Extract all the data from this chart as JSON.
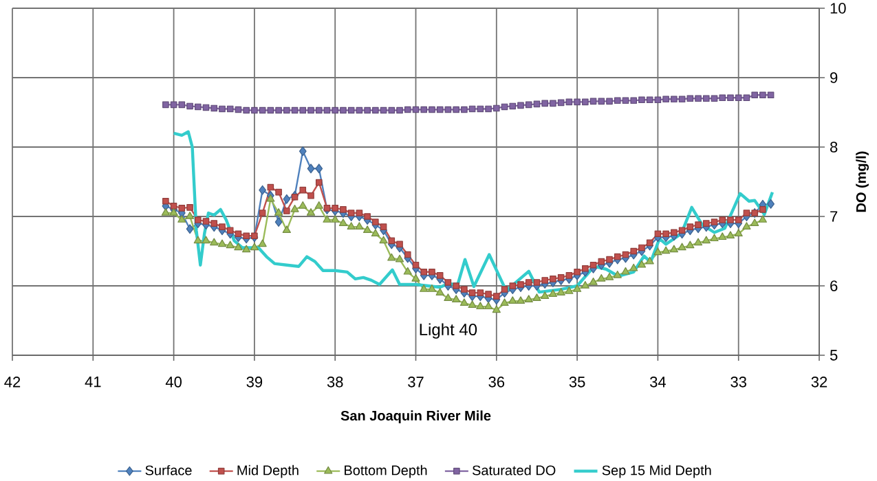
{
  "chart_data": {
    "type": "line",
    "xlabel": "San Joaquin River Mile",
    "ylabel": "DO (mg/l)",
    "xlim": [
      42,
      32
    ],
    "xticks": [
      42,
      41,
      40,
      39,
      38,
      37,
      36,
      35,
      34,
      33,
      32
    ],
    "ylim": [
      5,
      10
    ],
    "yticks": [
      5,
      6,
      7,
      8,
      9,
      10
    ],
    "grid": true,
    "legend": "bottom",
    "annotations": [
      "Light 40"
    ],
    "series": [
      {
        "name": "Surface",
        "color": "#4f81bd",
        "marker": "diamond",
        "line_style": "solid",
        "x": [
          40.1,
          40.0,
          39.9,
          39.8,
          39.7,
          39.6,
          39.5,
          39.4,
          39.3,
          39.2,
          39.1,
          39.0,
          38.9,
          38.8,
          38.7,
          38.6,
          38.5,
          38.4,
          38.3,
          38.2,
          38.1,
          38.0,
          37.9,
          37.8,
          37.7,
          37.6,
          37.5,
          37.4,
          37.3,
          37.2,
          37.1,
          37.0,
          36.9,
          36.8,
          36.7,
          36.6,
          36.5,
          36.4,
          36.3,
          36.2,
          36.1,
          36.0,
          35.9,
          35.8,
          35.7,
          35.6,
          35.5,
          35.4,
          35.3,
          35.2,
          35.1,
          35.0,
          34.9,
          34.8,
          34.7,
          34.6,
          34.5,
          34.4,
          34.3,
          34.2,
          34.1,
          34.0,
          33.9,
          33.8,
          33.7,
          33.6,
          33.5,
          33.4,
          33.3,
          33.2,
          33.1,
          33.0,
          32.9,
          32.8,
          32.7,
          32.6
        ],
        "values": [
          7.15,
          7.1,
          7.05,
          6.82,
          6.9,
          6.88,
          6.85,
          6.8,
          6.75,
          6.7,
          6.68,
          6.7,
          7.38,
          7.3,
          6.92,
          7.25,
          7.3,
          7.94,
          7.69,
          7.69,
          7.1,
          7.08,
          7.05,
          7.0,
          7.0,
          6.95,
          6.88,
          6.8,
          6.6,
          6.55,
          6.4,
          6.25,
          6.15,
          6.15,
          6.1,
          6.0,
          5.95,
          5.9,
          5.85,
          5.85,
          5.82,
          5.8,
          5.9,
          5.95,
          5.98,
          6.0,
          6.0,
          6.03,
          6.05,
          6.08,
          6.1,
          6.15,
          6.2,
          6.25,
          6.3,
          6.33,
          6.38,
          6.4,
          6.45,
          6.5,
          6.58,
          6.7,
          6.7,
          6.72,
          6.75,
          6.8,
          6.83,
          6.85,
          6.88,
          6.9,
          6.9,
          6.9,
          7.0,
          7.05,
          7.17,
          7.18
        ]
      },
      {
        "name": "Mid Depth",
        "color": "#c0504d",
        "marker": "square",
        "line_style": "solid",
        "x": [
          40.1,
          40.0,
          39.9,
          39.8,
          39.7,
          39.6,
          39.5,
          39.4,
          39.3,
          39.2,
          39.1,
          39.0,
          38.9,
          38.8,
          38.7,
          38.6,
          38.5,
          38.4,
          38.3,
          38.2,
          38.1,
          38.0,
          37.9,
          37.8,
          37.7,
          37.6,
          37.5,
          37.4,
          37.3,
          37.2,
          37.1,
          37.0,
          36.9,
          36.8,
          36.7,
          36.6,
          36.5,
          36.4,
          36.3,
          36.2,
          36.1,
          36.0,
          35.9,
          35.8,
          35.7,
          35.6,
          35.5,
          35.4,
          35.3,
          35.2,
          35.1,
          35.0,
          34.9,
          34.8,
          34.7,
          34.6,
          34.5,
          34.4,
          34.3,
          34.2,
          34.1,
          34.0,
          33.9,
          33.8,
          33.7,
          33.6,
          33.5,
          33.4,
          33.3,
          33.2,
          33.1,
          33.0,
          32.9,
          32.8,
          32.7
        ],
        "values": [
          7.22,
          7.15,
          7.12,
          7.13,
          6.95,
          6.93,
          6.9,
          6.85,
          6.8,
          6.75,
          6.72,
          6.72,
          7.05,
          7.42,
          7.35,
          7.08,
          7.28,
          7.38,
          7.3,
          7.49,
          7.12,
          7.12,
          7.1,
          7.05,
          7.05,
          7.0,
          6.92,
          6.85,
          6.65,
          6.6,
          6.45,
          6.3,
          6.2,
          6.2,
          6.15,
          6.05,
          6.0,
          5.95,
          5.9,
          5.9,
          5.88,
          5.85,
          5.95,
          6.0,
          6.02,
          6.05,
          6.05,
          6.08,
          6.1,
          6.12,
          6.15,
          6.2,
          6.25,
          6.3,
          6.35,
          6.38,
          6.42,
          6.45,
          6.5,
          6.55,
          6.62,
          6.75,
          6.75,
          6.77,
          6.8,
          6.85,
          6.88,
          6.9,
          6.92,
          6.95,
          6.95,
          6.95,
          7.05,
          7.05,
          7.1
        ]
      },
      {
        "name": "Bottom Depth",
        "color": "#9bbb59",
        "marker": "triangle",
        "line_style": "solid",
        "x": [
          40.1,
          40.0,
          39.9,
          39.8,
          39.7,
          39.6,
          39.5,
          39.4,
          39.3,
          39.2,
          39.1,
          39.0,
          38.9,
          38.8,
          38.7,
          38.6,
          38.5,
          38.4,
          38.3,
          38.2,
          38.1,
          38.0,
          37.9,
          37.8,
          37.7,
          37.6,
          37.5,
          37.4,
          37.3,
          37.2,
          37.1,
          37.0,
          36.9,
          36.8,
          36.7,
          36.6,
          36.5,
          36.4,
          36.3,
          36.2,
          36.1,
          36.0,
          35.9,
          35.8,
          35.7,
          35.6,
          35.5,
          35.4,
          35.3,
          35.2,
          35.1,
          35.0,
          34.9,
          34.8,
          34.7,
          34.6,
          34.5,
          34.4,
          34.3,
          34.2,
          34.1,
          34.0,
          33.9,
          33.8,
          33.7,
          33.6,
          33.5,
          33.4,
          33.3,
          33.2,
          33.1,
          33.0,
          32.9,
          32.8,
          32.7
        ],
        "values": [
          7.05,
          7.05,
          6.95,
          7.0,
          6.65,
          6.65,
          6.62,
          6.6,
          6.58,
          6.55,
          6.52,
          6.55,
          6.6,
          7.25,
          7.05,
          6.8,
          7.1,
          7.15,
          7.05,
          7.15,
          6.95,
          6.95,
          6.9,
          6.85,
          6.85,
          6.8,
          6.75,
          6.65,
          6.4,
          6.38,
          6.2,
          6.1,
          5.95,
          5.95,
          5.9,
          5.82,
          5.8,
          5.75,
          5.72,
          5.7,
          5.7,
          5.65,
          5.75,
          5.78,
          5.78,
          5.8,
          5.82,
          5.85,
          5.88,
          5.9,
          5.92,
          5.95,
          6.0,
          6.05,
          6.1,
          6.12,
          6.15,
          6.2,
          6.25,
          6.3,
          6.35,
          6.48,
          6.5,
          6.52,
          6.55,
          6.58,
          6.62,
          6.65,
          6.68,
          6.7,
          6.72,
          6.75,
          6.85,
          6.9,
          6.95
        ]
      },
      {
        "name": "Saturated DO",
        "color": "#8064a2",
        "marker": "square",
        "line_style": "solid",
        "x": [
          40.1,
          40.0,
          39.9,
          39.8,
          39.7,
          39.6,
          39.5,
          39.4,
          39.3,
          39.2,
          39.1,
          39.0,
          38.9,
          38.8,
          38.7,
          38.6,
          38.5,
          38.4,
          38.3,
          38.2,
          38.1,
          38.0,
          37.9,
          37.8,
          37.7,
          37.6,
          37.5,
          37.4,
          37.3,
          37.2,
          37.1,
          37.0,
          36.9,
          36.8,
          36.7,
          36.6,
          36.5,
          36.4,
          36.3,
          36.2,
          36.1,
          36.0,
          35.9,
          35.8,
          35.7,
          35.6,
          35.5,
          35.4,
          35.3,
          35.2,
          35.1,
          35.0,
          34.9,
          34.8,
          34.7,
          34.6,
          34.5,
          34.4,
          34.3,
          34.2,
          34.1,
          34.0,
          33.9,
          33.8,
          33.7,
          33.6,
          33.5,
          33.4,
          33.3,
          33.2,
          33.1,
          33.0,
          32.9,
          32.8,
          32.7,
          32.6
        ],
        "values": [
          8.61,
          8.61,
          8.61,
          8.59,
          8.58,
          8.57,
          8.56,
          8.55,
          8.55,
          8.54,
          8.53,
          8.53,
          8.53,
          8.53,
          8.53,
          8.53,
          8.53,
          8.53,
          8.53,
          8.53,
          8.53,
          8.53,
          8.53,
          8.53,
          8.53,
          8.53,
          8.53,
          8.53,
          8.53,
          8.53,
          8.54,
          8.54,
          8.54,
          8.54,
          8.54,
          8.54,
          8.54,
          8.54,
          8.55,
          8.55,
          8.55,
          8.56,
          8.58,
          8.59,
          8.6,
          8.61,
          8.62,
          8.63,
          8.63,
          8.64,
          8.65,
          8.65,
          8.65,
          8.66,
          8.66,
          8.66,
          8.67,
          8.67,
          8.67,
          8.68,
          8.68,
          8.68,
          8.69,
          8.69,
          8.69,
          8.7,
          8.7,
          8.7,
          8.7,
          8.71,
          8.71,
          8.71,
          8.71,
          8.75,
          8.75,
          8.75
        ]
      },
      {
        "name": "Sep 15 Mid Depth",
        "color": "#33cccc",
        "marker": "none",
        "line_style": "solid",
        "x": [
          40.0,
          39.9,
          39.82,
          39.77,
          39.72,
          39.67,
          39.62,
          39.57,
          39.5,
          39.42,
          39.35,
          39.25,
          39.15,
          39.05,
          38.95,
          38.85,
          38.75,
          38.6,
          38.45,
          38.35,
          38.25,
          38.15,
          38.0,
          37.85,
          37.75,
          37.65,
          37.55,
          37.45,
          37.29,
          37.2,
          37.0,
          36.85,
          36.7,
          36.6,
          36.48,
          36.39,
          36.28,
          36.09,
          35.88,
          35.6,
          35.47,
          35.2,
          35.0,
          34.79,
          34.64,
          34.49,
          34.3,
          34.17,
          34.09,
          33.98,
          33.9,
          33.71,
          33.58,
          33.45,
          33.3,
          33.17,
          32.98,
          32.87,
          32.8,
          32.68,
          32.58
        ],
        "values": [
          8.2,
          8.17,
          8.22,
          8.0,
          6.8,
          6.3,
          6.75,
          7.05,
          7.02,
          7.1,
          6.95,
          6.65,
          6.55,
          6.55,
          6.55,
          6.42,
          6.32,
          6.3,
          6.28,
          6.42,
          6.35,
          6.22,
          6.22,
          6.2,
          6.1,
          6.12,
          6.08,
          6.02,
          6.23,
          6.02,
          6.02,
          6.0,
          5.98,
          6.03,
          6.02,
          6.38,
          5.99,
          6.45,
          5.93,
          6.21,
          5.91,
          5.95,
          6.0,
          6.28,
          6.24,
          6.14,
          6.2,
          6.43,
          6.34,
          6.68,
          6.6,
          6.75,
          7.13,
          6.88,
          6.77,
          6.83,
          7.33,
          7.22,
          7.23,
          7.03,
          7.35
        ]
      }
    ]
  }
}
